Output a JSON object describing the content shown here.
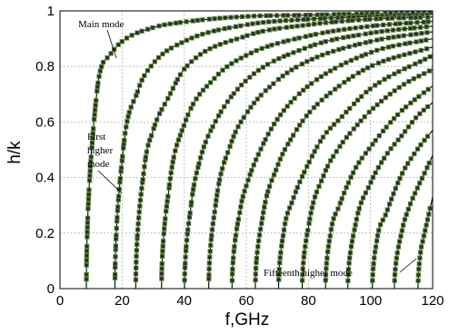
{
  "chart_data": {
    "type": "line",
    "xlabel": "f,GHz",
    "ylabel": "h/k",
    "xlim": [
      0,
      120
    ],
    "ylim": [
      0,
      1
    ],
    "xticks": [
      "0",
      "20",
      "40",
      "60",
      "80",
      "100",
      "120"
    ],
    "yticks": [
      "0",
      "0.2",
      "0.4",
      "0.6",
      "0.8",
      "1"
    ],
    "grid": true,
    "marker_color": "#5d8a3c",
    "series": [
      {
        "cutoff": 8.5,
        "x": [
          8.5,
          12,
          16,
          20,
          30,
          40,
          60,
          80,
          100,
          120
        ],
        "y": [
          0.0,
          0.72,
          0.84,
          0.89,
          0.94,
          0.96,
          0.98,
          0.985,
          0.99,
          0.993
        ]
      },
      {
        "cutoff": 17.7,
        "x": [
          17.7,
          20,
          25,
          30,
          40,
          60,
          80,
          100,
          120
        ],
        "y": [
          0.0,
          0.46,
          0.71,
          0.81,
          0.89,
          0.95,
          0.97,
          0.98,
          0.987
        ]
      },
      {
        "cutoff": 24.4,
        "x": [
          24.4,
          27,
          30,
          35,
          40,
          60,
          80,
          100,
          120
        ],
        "y": [
          0.0,
          0.42,
          0.57,
          0.69,
          0.79,
          0.91,
          0.95,
          0.97,
          0.978
        ]
      },
      {
        "cutoff": 32.7,
        "x": [
          32.7,
          35,
          40,
          50,
          60,
          80,
          100,
          120
        ],
        "y": [
          0.0,
          0.35,
          0.59,
          0.76,
          0.84,
          0.91,
          0.945,
          0.962
        ]
      },
      {
        "cutoff": 40.1,
        "x": [
          40.1,
          42,
          45,
          50,
          60,
          80,
          100,
          120
        ],
        "y": [
          0.0,
          0.28,
          0.46,
          0.6,
          0.75,
          0.87,
          0.92,
          0.945
        ]
      },
      {
        "cutoff": 47.9,
        "x": [
          47.9,
          50,
          55,
          60,
          70,
          80,
          100,
          120
        ],
        "y": [
          0.0,
          0.29,
          0.52,
          0.63,
          0.75,
          0.82,
          0.89,
          0.925
        ]
      },
      {
        "cutoff": 55.4,
        "x": [
          55.4,
          58,
          60,
          65,
          70,
          80,
          100,
          120
        ],
        "y": [
          0.0,
          0.28,
          0.37,
          0.51,
          0.61,
          0.73,
          0.85,
          0.9
        ]
      },
      {
        "cutoff": 62.9,
        "x": [
          62.9,
          65,
          70,
          75,
          80,
          90,
          100,
          120
        ],
        "y": [
          0.0,
          0.24,
          0.44,
          0.55,
          0.63,
          0.73,
          0.8,
          0.87
        ]
      },
      {
        "cutoff": 70.4,
        "x": [
          70.4,
          72,
          75,
          80,
          85,
          90,
          100,
          120
        ],
        "y": [
          0.0,
          0.2,
          0.32,
          0.45,
          0.55,
          0.61,
          0.72,
          0.84
        ]
      },
      {
        "cutoff": 78.0,
        "x": [
          78,
          80,
          85,
          90,
          95,
          100,
          110,
          120
        ],
        "y": [
          0.0,
          0.22,
          0.41,
          0.51,
          0.58,
          0.64,
          0.73,
          0.79
        ]
      },
      {
        "cutoff": 85.5,
        "x": [
          85.5,
          87,
          90,
          95,
          100,
          105,
          110,
          120
        ],
        "y": [
          0.0,
          0.19,
          0.3,
          0.43,
          0.51,
          0.58,
          0.64,
          0.73
        ]
      },
      {
        "cutoff": 92.7,
        "x": [
          92.7,
          95,
          100,
          105,
          110,
          115,
          120
        ],
        "y": [
          0.0,
          0.22,
          0.38,
          0.48,
          0.55,
          0.62,
          0.67
        ]
      },
      {
        "cutoff": 100.6,
        "x": [
          100.6,
          102,
          105,
          110,
          115,
          120
        ],
        "y": [
          0.0,
          0.17,
          0.27,
          0.41,
          0.5,
          0.57
        ]
      },
      {
        "cutoff": 107.7,
        "x": [
          107.7,
          110,
          112,
          115,
          118,
          120
        ],
        "y": [
          0.0,
          0.2,
          0.28,
          0.36,
          0.43,
          0.48
        ]
      },
      {
        "cutoff": 115.3,
        "x": [
          115.3,
          116,
          117,
          118,
          119,
          120
        ],
        "y": [
          0.0,
          0.12,
          0.18,
          0.23,
          0.28,
          0.33
        ]
      }
    ],
    "annotations": [
      {
        "text": "Main mode",
        "series": 0
      },
      {
        "lines": [
          "First",
          "higher",
          "mode"
        ],
        "series": 1
      },
      {
        "text": "Fifteenth higher mode",
        "series": 14
      }
    ]
  }
}
